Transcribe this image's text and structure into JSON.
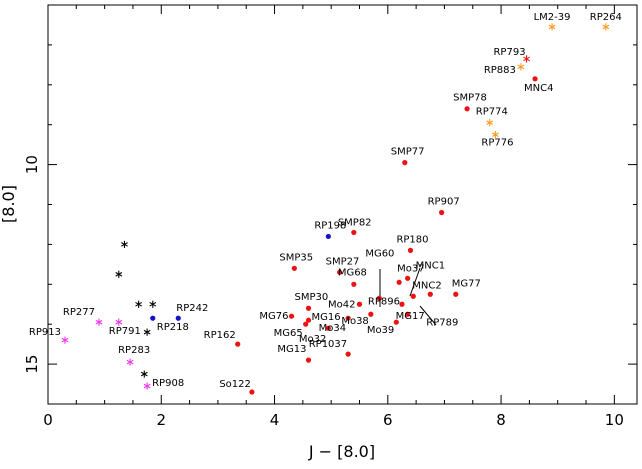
{
  "chart_data": {
    "type": "scatter",
    "xlabel": "J − [8.0]",
    "ylabel": "[8.0]",
    "xlim": [
      0,
      10.4
    ],
    "ylim": [
      16.0,
      6.0
    ],
    "y_inverted": true,
    "xticks": [
      0,
      2,
      4,
      6,
      8,
      10
    ],
    "yticks": [
      10,
      15
    ],
    "colors": {
      "red": "#ee1111",
      "blue": "#1111cc",
      "black": "#000000",
      "magenta": "#ee33ee",
      "orange": "#ff9922"
    },
    "points": [
      {
        "label": "LM2-39",
        "x": 8.9,
        "y": 6.55,
        "marker": "star",
        "color": "orange"
      },
      {
        "label": "RP264",
        "x": 9.85,
        "y": 6.55,
        "marker": "star",
        "color": "orange"
      },
      {
        "label": "RP793",
        "x": 8.45,
        "y": 7.35,
        "marker": "star",
        "color": "red"
      },
      {
        "label": "RP883",
        "x": 8.35,
        "y": 7.55,
        "marker": "star",
        "color": "orange"
      },
      {
        "label": "MNC4",
        "x": 8.6,
        "y": 7.85,
        "marker": "dot",
        "color": "red"
      },
      {
        "label": "SMP78",
        "x": 7.4,
        "y": 8.6,
        "marker": "dot",
        "color": "red"
      },
      {
        "label": "RP774",
        "x": 7.8,
        "y": 8.95,
        "marker": "star",
        "color": "orange"
      },
      {
        "label": "RP776",
        "x": 7.9,
        "y": 9.25,
        "marker": "star",
        "color": "orange"
      },
      {
        "label": "SMP77",
        "x": 6.3,
        "y": 9.95,
        "marker": "dot",
        "color": "red"
      },
      {
        "label": "RP907",
        "x": 6.95,
        "y": 11.2,
        "marker": "dot",
        "color": "red"
      },
      {
        "label": "SMP82",
        "x": 5.4,
        "y": 11.7,
        "marker": "dot",
        "color": "red"
      },
      {
        "label": "RP198",
        "x": 4.95,
        "y": 11.8,
        "marker": "dot",
        "color": "blue"
      },
      {
        "label": "RP180",
        "x": 6.4,
        "y": 12.15,
        "marker": "dot",
        "color": "red"
      },
      {
        "label": "MNC1",
        "x": 6.35,
        "y": 12.85,
        "marker": "dot",
        "color": "red"
      },
      {
        "label": "SMP35",
        "x": 4.35,
        "y": 12.6,
        "marker": "dot",
        "color": "red"
      },
      {
        "label": "SMP27",
        "x": 5.15,
        "y": 12.7,
        "marker": "dot",
        "color": "red"
      },
      {
        "label": "MG60",
        "x": 5.85,
        "y": 13.35,
        "marker": "dot",
        "color": "red"
      },
      {
        "label": "MG68",
        "x": 5.4,
        "y": 13.0,
        "marker": "dot",
        "color": "red"
      },
      {
        "label": "Mo37",
        "x": 6.2,
        "y": 12.95,
        "marker": "dot",
        "color": "red"
      },
      {
        "label": "MNC2",
        "x": 6.45,
        "y": 13.3,
        "marker": "dot",
        "color": "red"
      },
      {
        "label": "MG77",
        "x": 7.2,
        "y": 13.25,
        "marker": "dot",
        "color": "red"
      },
      {
        "label": "RP896",
        "x": 6.25,
        "y": 13.5,
        "marker": "dot",
        "color": "red"
      },
      {
        "label": "RP789",
        "x": 6.75,
        "y": 13.25,
        "marker": "dot",
        "color": "red"
      },
      {
        "label": "Mo42",
        "x": 5.5,
        "y": 13.5,
        "marker": "dot",
        "color": "red"
      },
      {
        "label": "SMP30",
        "x": 4.6,
        "y": 13.6,
        "marker": "dot",
        "color": "red"
      },
      {
        "label": "MG17",
        "x": 6.35,
        "y": 13.75,
        "marker": "dot",
        "color": "red"
      },
      {
        "label": "Mo34",
        "x": 5.3,
        "y": 13.85,
        "marker": "dot",
        "color": "red"
      },
      {
        "label": "Mo38",
        "x": 5.7,
        "y": 13.75,
        "marker": "dot",
        "color": "red"
      },
      {
        "label": "Mo39",
        "x": 6.15,
        "y": 13.95,
        "marker": "dot",
        "color": "red"
      },
      {
        "label": "MG76",
        "x": 4.3,
        "y": 13.8,
        "marker": "dot",
        "color": "red"
      },
      {
        "label": "MG16",
        "x": 4.6,
        "y": 13.9,
        "marker": "dot",
        "color": "red"
      },
      {
        "label": "MG65",
        "x": 4.55,
        "y": 14.0,
        "marker": "dot",
        "color": "red"
      },
      {
        "label": "Mo32",
        "x": 4.95,
        "y": 14.1,
        "marker": "dot",
        "color": "red"
      },
      {
        "label": "RP162",
        "x": 3.35,
        "y": 14.5,
        "marker": "dot",
        "color": "red"
      },
      {
        "label": "RP1037",
        "x": 5.3,
        "y": 14.75,
        "marker": "dot",
        "color": "red"
      },
      {
        "label": "MG13",
        "x": 4.6,
        "y": 14.9,
        "marker": "dot",
        "color": "red"
      },
      {
        "label": "So122",
        "x": 3.6,
        "y": 15.7,
        "marker": "dot",
        "color": "red"
      },
      {
        "label": "RP242",
        "x": 2.3,
        "y": 13.85,
        "marker": "dot",
        "color": "blue"
      },
      {
        "label": "RP218",
        "x": 1.85,
        "y": 13.85,
        "marker": "dot",
        "color": "blue"
      },
      {
        "label": "RP277",
        "x": 0.9,
        "y": 13.95,
        "marker": "star",
        "color": "magenta"
      },
      {
        "label": "RP791",
        "x": 1.25,
        "y": 13.95,
        "marker": "star",
        "color": "magenta"
      },
      {
        "label": "RP913",
        "x": 0.3,
        "y": 14.4,
        "marker": "star",
        "color": "magenta"
      },
      {
        "label": "RP283",
        "x": 1.45,
        "y": 14.95,
        "marker": "star",
        "color": "magenta"
      },
      {
        "label": "RP908",
        "x": 1.75,
        "y": 15.55,
        "marker": "star",
        "color": "magenta"
      },
      {
        "label": "",
        "x": 1.35,
        "y": 12.0,
        "marker": "star",
        "color": "black"
      },
      {
        "label": "",
        "x": 1.25,
        "y": 12.75,
        "marker": "star",
        "color": "black"
      },
      {
        "label": "",
        "x": 1.6,
        "y": 13.5,
        "marker": "star",
        "color": "black"
      },
      {
        "label": "",
        "x": 1.85,
        "y": 13.5,
        "marker": "star",
        "color": "black"
      },
      {
        "label": "",
        "x": 1.75,
        "y": 14.2,
        "marker": "star",
        "color": "black"
      },
      {
        "label": "",
        "x": 1.7,
        "y": 15.25,
        "marker": "star",
        "color": "black"
      }
    ]
  }
}
